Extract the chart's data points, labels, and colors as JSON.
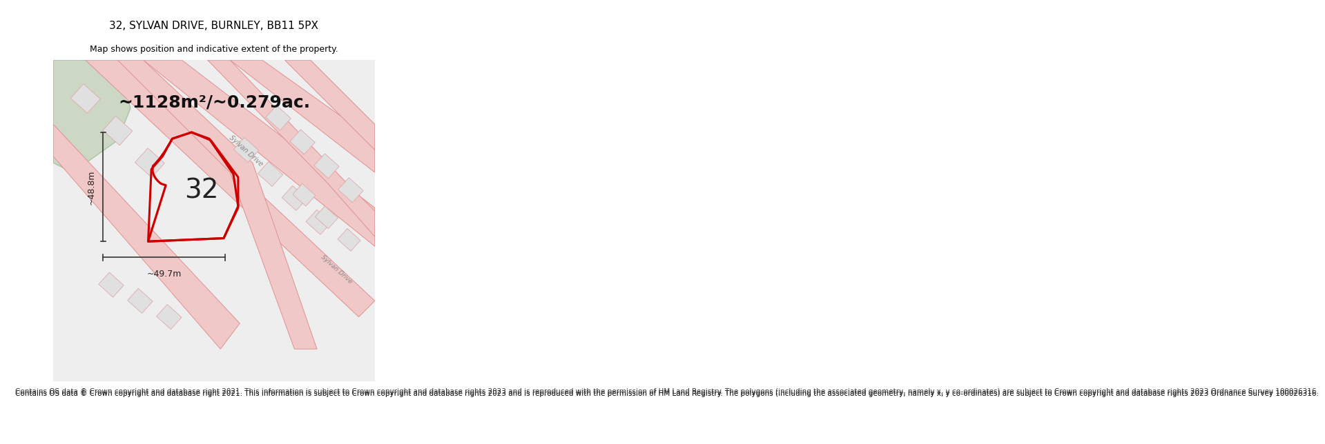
{
  "title": "32, SYLVAN DRIVE, BURNLEY, BB11 5PX",
  "subtitle": "Map shows position and indicative extent of the property.",
  "area_text": "~1128m²/~0.279ac.",
  "number_label": "32",
  "width_label": "~49.7m",
  "height_label": "~48.8m",
  "footer": "Contains OS data © Crown copyright and database right 2021. This information is subject to Crown copyright and database rights 2023 and is reproduced with the permission of HM Land Registry. The polygons (including the associated geometry, namely x, y co-ordinates) are subject to Crown copyright and database rights 2023 Ordnance Survey 100026316.",
  "bg_color": "#f5f5f5",
  "map_bg": "#e8e8e8",
  "plot_color": "#cc0000",
  "road_color": "#e8a0a0",
  "road_fill": "#f0d0d0",
  "green_color": "#c8d8c0",
  "title_fontsize": 11,
  "subtitle_fontsize": 9,
  "area_fontsize": 18,
  "number_fontsize": 28,
  "footer_fontsize": 7.5
}
